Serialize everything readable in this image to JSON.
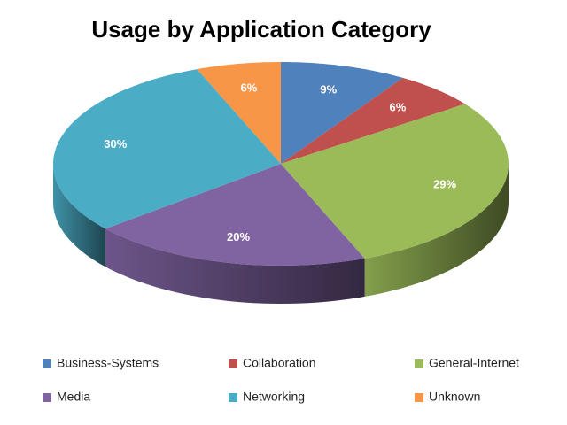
{
  "chart_data": {
    "type": "pie",
    "title": "Usage by Application Category",
    "categories": [
      "Business-Systems",
      "Collaboration",
      "General-Internet",
      "Media",
      "Networking",
      "Unknown"
    ],
    "values": [
      9,
      6,
      29,
      20,
      30,
      6
    ],
    "value_labels": [
      "9%",
      "6%",
      "29%",
      "20%",
      "30%",
      "6%"
    ],
    "colors": [
      "#4F81BD",
      "#C0504D",
      "#9BBB59",
      "#8064A2",
      "#4BACC6",
      "#F79646"
    ],
    "legend": "bottom"
  }
}
